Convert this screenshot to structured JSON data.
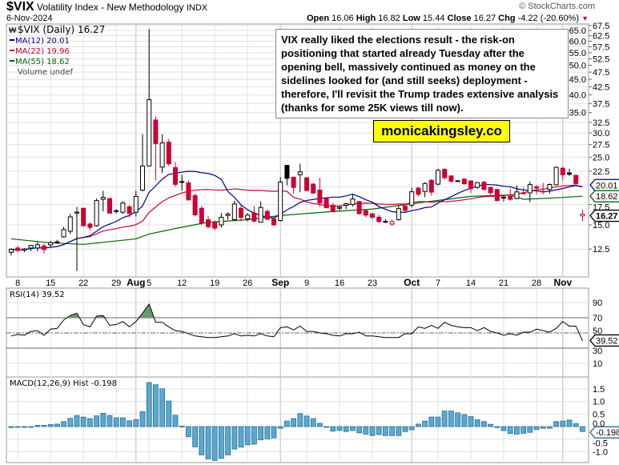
{
  "header": {
    "symbol": "$VIX",
    "name": "Volatility Index - New Methodology",
    "exchange": "INDX",
    "date": "6-Nov-2024",
    "copyright": "© StockCharts.com",
    "open_label": "Open",
    "open": "16.06",
    "high_label": "High",
    "high": "16.82",
    "low_label": "Low",
    "low": "15.44",
    "close_label": "Close",
    "close": "16.27",
    "chg_label": "Chg",
    "chg": "-4.22 (-20.60%)",
    "chg_icon": "down-triangle-icon"
  },
  "annotation": "VIX really liked the elections result - the risk-on positioning that started already Tuesday after the opening bell, massively continued as money on the sidelines looked for (and still seeks) deployment - therefore, I'll revisit the Trump trades extensive analysis (thanks for some 25K views till now).",
  "watermark": "monicakingsley.co",
  "colors": {
    "up": "#000000",
    "down": "#cc0033",
    "ma12": "#00008b",
    "ma22": "#cc0033",
    "ma55": "#006400",
    "rsi_fill": "#6b9a6b",
    "macd": "#5aa8d0",
    "macd_stroke": "#2a6f97",
    "grid": "#e0e0e0"
  },
  "chart_data": [
    {
      "type": "candlestick",
      "scale": "log",
      "legend": {
        "price": "$VIX (Daily) 16.27",
        "ma12": "MA(12) 20.01",
        "ma22": "MA(22) 19.96",
        "ma55": "MA(55) 18.62",
        "volume": "Volume undef"
      },
      "last_labels": {
        "ma12": "20.01",
        "ma55": "18.62",
        "close": "16.27"
      },
      "ylim": [
        11.5,
        67.5
      ],
      "yticks": [
        "67.5",
        "65.0",
        "62.5",
        "60.0",
        "57.5",
        "55.0",
        "52.5",
        "50.0",
        "47.5",
        "45.0",
        "42.5",
        "40.0",
        "37.5",
        "35.0",
        "32.5",
        "30.0",
        "27.5",
        "25.0",
        "22.5",
        "17.5",
        "15.0",
        "12.5"
      ],
      "gridticks": [
        67.5,
        65,
        62.5,
        60,
        57.5,
        55,
        52.5,
        50,
        47.5,
        45,
        42.5,
        40,
        37.5,
        35,
        32.5,
        30,
        27.5,
        25,
        22.5,
        20,
        17.5,
        15,
        12.5
      ],
      "xticks": [
        {
          "label": "8",
          "date": "2024-07-08",
          "month": false
        },
        {
          "label": "15",
          "date": "2024-07-15",
          "month": false
        },
        {
          "label": "22",
          "date": "2024-07-22",
          "month": false
        },
        {
          "label": "29",
          "date": "2024-07-29",
          "month": false
        },
        {
          "label": "Aug",
          "date": "2024-08-01",
          "month": true
        },
        {
          "label": "5",
          "date": "2024-08-05",
          "month": false
        },
        {
          "label": "12",
          "date": "2024-08-12",
          "month": false
        },
        {
          "label": "19",
          "date": "2024-08-19",
          "month": false
        },
        {
          "label": "26",
          "date": "2024-08-26",
          "month": false
        },
        {
          "label": "Sep",
          "date": "2024-09-03",
          "month": true
        },
        {
          "label": "9",
          "date": "2024-09-09",
          "month": false
        },
        {
          "label": "16",
          "date": "2024-09-16",
          "month": false
        },
        {
          "label": "23",
          "date": "2024-09-23",
          "month": false
        },
        {
          "label": "Oct",
          "date": "2024-10-01",
          "month": true
        },
        {
          "label": "7",
          "date": "2024-10-07",
          "month": false
        },
        {
          "label": "14",
          "date": "2024-10-14",
          "month": false
        },
        {
          "label": "21",
          "date": "2024-10-21",
          "month": false
        },
        {
          "label": "28",
          "date": "2024-10-28",
          "month": false
        },
        {
          "label": "Nov",
          "date": "2024-11-01",
          "month": true
        }
      ],
      "dates": [
        "2024-07-05",
        "2024-07-08",
        "2024-07-09",
        "2024-07-10",
        "2024-07-11",
        "2024-07-12",
        "2024-07-15",
        "2024-07-16",
        "2024-07-17",
        "2024-07-18",
        "2024-07-19",
        "2024-07-22",
        "2024-07-23",
        "2024-07-24",
        "2024-07-25",
        "2024-07-26",
        "2024-07-29",
        "2024-07-30",
        "2024-07-31",
        "2024-08-01",
        "2024-08-02",
        "2024-08-05",
        "2024-08-06",
        "2024-08-07",
        "2024-08-08",
        "2024-08-09",
        "2024-08-12",
        "2024-08-13",
        "2024-08-14",
        "2024-08-15",
        "2024-08-16",
        "2024-08-19",
        "2024-08-20",
        "2024-08-21",
        "2024-08-22",
        "2024-08-23",
        "2024-08-26",
        "2024-08-27",
        "2024-08-28",
        "2024-08-29",
        "2024-08-30",
        "2024-09-03",
        "2024-09-04",
        "2024-09-05",
        "2024-09-06",
        "2024-09-09",
        "2024-09-10",
        "2024-09-11",
        "2024-09-12",
        "2024-09-13",
        "2024-09-16",
        "2024-09-17",
        "2024-09-18",
        "2024-09-19",
        "2024-09-20",
        "2024-09-23",
        "2024-09-24",
        "2024-09-25",
        "2024-09-26",
        "2024-09-27",
        "2024-09-30",
        "2024-10-01",
        "2024-10-02",
        "2024-10-03",
        "2024-10-04",
        "2024-10-07",
        "2024-10-08",
        "2024-10-09",
        "2024-10-10",
        "2024-10-11",
        "2024-10-14",
        "2024-10-15",
        "2024-10-16",
        "2024-10-17",
        "2024-10-18",
        "2024-10-21",
        "2024-10-22",
        "2024-10-23",
        "2024-10-24",
        "2024-10-25",
        "2024-10-28",
        "2024-10-29",
        "2024-10-30",
        "2024-10-31",
        "2024-11-01",
        "2024-11-04",
        "2024-11-05",
        "2024-11-06"
      ],
      "ohlc": [
        [
          12.2,
          12.6,
          11.9,
          12.48
        ],
        [
          12.6,
          12.8,
          12.2,
          12.37
        ],
        [
          12.4,
          12.6,
          12.2,
          12.51
        ],
        [
          12.6,
          12.9,
          12.3,
          12.85
        ],
        [
          12.6,
          13.2,
          12.3,
          12.91
        ],
        [
          12.8,
          13.0,
          12.1,
          12.46
        ],
        [
          12.9,
          13.3,
          12.7,
          13.12
        ],
        [
          13.2,
          13.4,
          13.0,
          13.19
        ],
        [
          13.7,
          14.8,
          13.6,
          14.48
        ],
        [
          14.3,
          16.3,
          14.0,
          15.93
        ],
        [
          16.4,
          17.2,
          10.6,
          16.52
        ],
        [
          17.0,
          17.1,
          14.8,
          14.91
        ],
        [
          15.1,
          15.3,
          14.4,
          14.72
        ],
        [
          14.9,
          18.3,
          14.8,
          18.04
        ],
        [
          18.2,
          19.4,
          16.6,
          18.46
        ],
        [
          18.3,
          18.4,
          16.4,
          16.39
        ],
        [
          16.7,
          16.9,
          16.3,
          16.6
        ],
        [
          16.5,
          17.9,
          16.3,
          17.69
        ],
        [
          17.2,
          17.4,
          15.9,
          16.36
        ],
        [
          16.5,
          19.4,
          16.0,
          18.59
        ],
        [
          19.5,
          29.7,
          19.3,
          23.39
        ],
        [
          23.4,
          65.7,
          23.3,
          38.57
        ],
        [
          33.1,
          34.0,
          21.0,
          27.71
        ],
        [
          23.2,
          29.7,
          22.2,
          27.85
        ],
        [
          28.0,
          28.7,
          23.4,
          23.79
        ],
        [
          23.1,
          24.1,
          20.0,
          20.37
        ],
        [
          20.8,
          21.9,
          19.4,
          20.71
        ],
        [
          20.6,
          21.0,
          18.0,
          18.12
        ],
        [
          18.7,
          19.0,
          16.0,
          16.19
        ],
        [
          17.0,
          17.3,
          15.0,
          15.23
        ],
        [
          15.6,
          16.0,
          14.6,
          14.8
        ],
        [
          15.3,
          15.5,
          14.4,
          14.65
        ],
        [
          15.0,
          16.4,
          14.7,
          15.88
        ],
        [
          16.1,
          16.5,
          15.6,
          16.27
        ],
        [
          15.6,
          18.0,
          15.5,
          17.55
        ],
        [
          17.0,
          17.4,
          15.4,
          15.86
        ],
        [
          15.7,
          16.4,
          15.4,
          16.15
        ],
        [
          16.4,
          17.3,
          15.3,
          15.43
        ],
        [
          15.3,
          17.9,
          15.3,
          17.11
        ],
        [
          16.6,
          16.9,
          15.6,
          15.65
        ],
        [
          15.7,
          15.9,
          14.9,
          15.0
        ],
        [
          15.5,
          21.5,
          15.4,
          20.72
        ],
        [
          23.5,
          23.6,
          20.2,
          21.32
        ],
        [
          21.5,
          21.6,
          19.0,
          19.9
        ],
        [
          21.9,
          23.8,
          19.2,
          22.38
        ],
        [
          21.4,
          21.5,
          19.3,
          19.45
        ],
        [
          20.4,
          20.6,
          18.9,
          19.08
        ],
        [
          19.5,
          21.4,
          17.2,
          17.69
        ],
        [
          18.3,
          18.5,
          17.0,
          17.07
        ],
        [
          17.4,
          17.7,
          16.5,
          16.56
        ],
        [
          17.0,
          17.3,
          16.7,
          17.14
        ],
        [
          17.4,
          17.7,
          16.9,
          17.61
        ],
        [
          17.5,
          18.9,
          17.2,
          18.23
        ],
        [
          17.9,
          18.0,
          16.2,
          16.33
        ],
        [
          16.7,
          16.8,
          15.9,
          16.15
        ],
        [
          16.3,
          16.5,
          15.6,
          15.89
        ],
        [
          15.9,
          16.2,
          15.2,
          15.39
        ],
        [
          15.3,
          15.7,
          15.2,
          15.41
        ],
        [
          15.1,
          15.6,
          14.9,
          15.37
        ],
        [
          15.6,
          17.3,
          15.5,
          16.96
        ],
        [
          17.3,
          17.5,
          16.5,
          16.73
        ],
        [
          17.4,
          19.9,
          17.1,
          19.26
        ],
        [
          19.8,
          20.0,
          18.6,
          18.9
        ],
        [
          19.3,
          20.7,
          18.5,
          20.49
        ],
        [
          21.0,
          21.2,
          18.7,
          19.21
        ],
        [
          20.4,
          22.9,
          20.2,
          22.64
        ],
        [
          22.8,
          23.0,
          21.1,
          21.42
        ],
        [
          21.7,
          21.8,
          20.6,
          20.86
        ],
        [
          20.9,
          21.0,
          20.8,
          20.93
        ],
        [
          21.2,
          21.3,
          20.3,
          20.46
        ],
        [
          20.9,
          21.0,
          19.1,
          19.7
        ],
        [
          19.9,
          20.7,
          19.7,
          20.64
        ],
        [
          20.7,
          20.9,
          19.5,
          19.58
        ],
        [
          19.9,
          20.0,
          18.6,
          19.11
        ],
        [
          19.6,
          19.7,
          17.9,
          18.03
        ],
        [
          18.5,
          18.6,
          17.9,
          18.37
        ],
        [
          18.6,
          19.7,
          18.0,
          18.2
        ],
        [
          18.3,
          20.2,
          18.2,
          19.24
        ],
        [
          19.0,
          19.9,
          18.9,
          19.08
        ],
        [
          19.1,
          20.8,
          17.8,
          20.33
        ],
        [
          20.0,
          20.3,
          18.9,
          19.8
        ],
        [
          19.3,
          20.6,
          18.9,
          19.34
        ],
        [
          19.6,
          20.5,
          19.0,
          20.35
        ],
        [
          20.3,
          23.3,
          20.2,
          23.16
        ],
        [
          23.0,
          23.3,
          21.0,
          21.88
        ],
        [
          22.2,
          22.9,
          21.7,
          21.98
        ],
        [
          21.8,
          21.9,
          20.2,
          20.49
        ],
        [
          16.06,
          16.82,
          15.44,
          16.27
        ]
      ],
      "ma55": [
        {
          "date": "2024-07-05",
          "value": 13.5
        },
        {
          "date": "2024-07-15",
          "value": 13.1
        },
        {
          "date": "2024-07-22",
          "value": 12.95
        },
        {
          "date": "2024-08-01",
          "value": 13.5
        },
        {
          "date": "2024-08-05",
          "value": 14.0
        },
        {
          "date": "2024-08-09",
          "value": 14.6
        },
        {
          "date": "2024-08-16",
          "value": 15.3
        },
        {
          "date": "2024-08-26",
          "value": 15.6
        },
        {
          "date": "2024-09-03",
          "value": 16.1
        },
        {
          "date": "2024-09-13",
          "value": 16.6
        },
        {
          "date": "2024-09-23",
          "value": 16.9
        },
        {
          "date": "2024-10-01",
          "value": 17.6
        },
        {
          "date": "2024-10-14",
          "value": 18.6
        },
        {
          "date": "2024-10-22",
          "value": 18.8
        },
        {
          "date": "2024-10-24",
          "value": 18.2
        },
        {
          "date": "2024-10-31",
          "value": 18.4
        },
        {
          "date": "2024-11-06",
          "value": 18.62
        }
      ]
    },
    {
      "type": "line",
      "legend": "RSI(14) 39.52",
      "last_label": "39.52",
      "ylim": [
        0,
        100
      ],
      "yticks": [
        "90",
        "70",
        "50",
        "30",
        "10"
      ],
      "levels": [
        70,
        50,
        30
      ],
      "values": [
        46,
        48,
        47,
        52,
        53,
        47,
        55,
        56,
        67,
        73,
        76,
        61,
        58,
        72,
        73,
        60,
        61,
        65,
        58,
        65,
        76,
        88,
        64,
        64,
        58,
        53,
        52,
        49,
        46,
        45,
        44,
        44,
        45,
        46,
        49,
        46,
        47,
        46,
        49,
        46,
        45,
        57,
        58,
        54,
        59,
        52,
        52,
        50,
        49,
        47,
        46,
        49,
        49,
        51,
        46,
        46,
        45,
        44,
        44,
        44,
        49,
        49,
        58,
        56,
        60,
        56,
        64,
        60,
        58,
        57,
        57,
        53,
        57,
        52,
        50,
        47,
        49,
        47,
        51,
        51,
        55,
        53,
        51,
        56,
        65,
        59,
        59,
        39.52
      ]
    },
    {
      "type": "bar",
      "legend": "MACD(12,26,9) Hist -0.198",
      "last_label": "-0.198",
      "ylim": [
        -1.4,
        1.9
      ],
      "yticks": [
        "1.5",
        "1.0",
        "0.5",
        "0.0",
        "-0.5",
        "-1.0"
      ],
      "values": [
        -0.04,
        -0.02,
        -0.01,
        0.0,
        0.05,
        0.05,
        0.08,
        0.1,
        0.2,
        0.33,
        0.44,
        0.38,
        0.32,
        0.43,
        0.53,
        0.44,
        0.35,
        0.35,
        0.23,
        0.28,
        0.6,
        1.76,
        1.67,
        1.51,
        1.02,
        0.45,
        0.02,
        -0.41,
        -0.81,
        -1.13,
        -1.29,
        -1.35,
        -1.27,
        -1.13,
        -0.9,
        -0.82,
        -0.73,
        -0.7,
        -0.53,
        -0.49,
        -0.45,
        -0.07,
        0.22,
        0.32,
        0.52,
        0.42,
        0.32,
        0.13,
        -0.03,
        -0.18,
        -0.15,
        -0.2,
        -0.16,
        -0.25,
        -0.3,
        -0.36,
        -0.32,
        -0.36,
        -0.36,
        -0.36,
        -0.2,
        -0.13,
        0.1,
        0.22,
        0.38,
        0.38,
        0.62,
        0.62,
        0.55,
        0.48,
        0.4,
        0.27,
        0.2,
        0.09,
        -0.04,
        -0.16,
        -0.28,
        -0.3,
        -0.27,
        -0.23,
        -0.12,
        -0.07,
        -0.07,
        0.2,
        0.22,
        0.26,
        0.12,
        -0.198
      ]
    }
  ]
}
